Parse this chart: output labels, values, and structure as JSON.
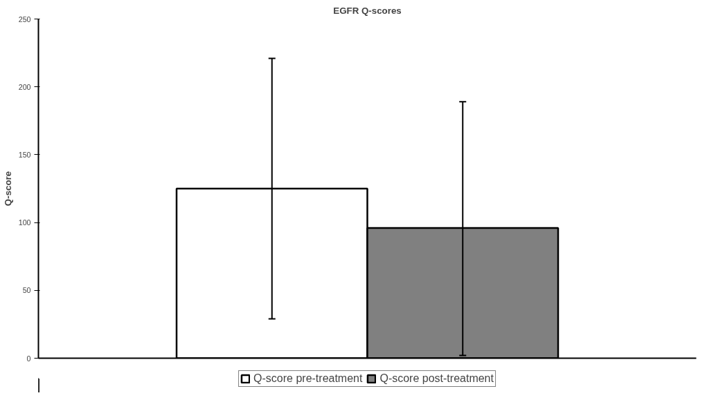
{
  "chart_data": {
    "type": "bar",
    "title": "EGFR Q-scores",
    "ylabel": "Q-score",
    "categories": [
      null
    ],
    "series": [
      {
        "name": "Q-score pre-treatment",
        "color": "#ffffff",
        "values": [
          125
        ],
        "errors": [
          [
            29,
            221
          ]
        ]
      },
      {
        "name": "Q-score post-treatment",
        "color": "#808080",
        "values": [
          96
        ],
        "errors": [
          [
            2,
            189
          ]
        ]
      }
    ],
    "ylim": [
      0,
      250
    ],
    "yticks": [
      0,
      50,
      100,
      150,
      200,
      250
    ],
    "grid": false,
    "legend": "bottom",
    "tick_labels": "y"
  }
}
